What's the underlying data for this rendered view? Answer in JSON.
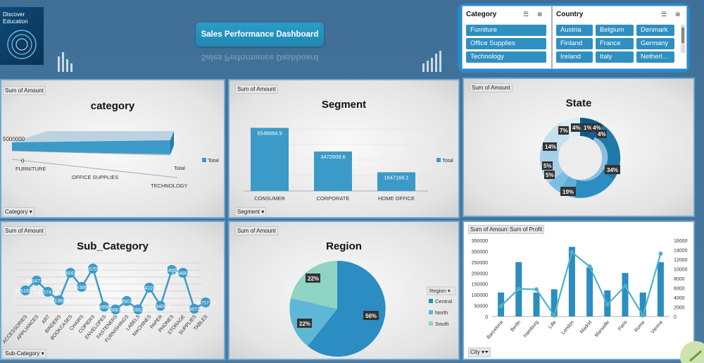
{
  "logo": {
    "line1": "Discover",
    "line2": "Education",
    "mark": "ⓔ"
  },
  "dashboard_title": "Sales Performance Dashboard",
  "slicers": {
    "category": {
      "header": "Category",
      "items": [
        "Furniture",
        "Office Supplies",
        "Technology"
      ]
    },
    "country": {
      "header": "Country",
      "items": [
        "Austria",
        "Belgium",
        "Denmark",
        "Finland",
        "France",
        "Germany",
        "Ireland",
        "Italy",
        "Netherl..."
      ]
    }
  },
  "sum_of_amount": "Sum of Amount",
  "sum_of_profit": "Sum of Profit",
  "category_chart": {
    "title": "category",
    "ytick": "5000000",
    "yzero": "0",
    "categories": [
      "FURNITURE",
      "OFFICE SUPPLIES",
      "TECHNOLOGY"
    ],
    "legend": "Total",
    "filter": "Category ▾"
  },
  "segment_chart": {
    "title": "Segment",
    "categories": [
      "CONSUMER",
      "CORPORATE",
      "HOME OFFICE"
    ],
    "values": [
      5548684.9,
      3472609.6,
      1647169.1
    ],
    "labels": [
      "5548684.9",
      "3472609.6",
      "1647169.1"
    ],
    "legend": "Total",
    "filter": "Segment ▾"
  },
  "state_chart": {
    "title": "State",
    "labels": [
      "4%",
      "1%",
      "4%",
      "4%",
      "34%",
      "19%",
      "5%",
      "5%",
      "14%",
      "7%"
    ]
  },
  "subcat_chart": {
    "title": "Sub_Category",
    "categories": [
      "ACCESSORIES",
      "APPLIANCES",
      "ART",
      "BINDERS",
      "BOOKCASES",
      "CHAIRS",
      "COPIERS",
      "ENVELOPES",
      "FASTENERS",
      "FURNISHINGS",
      "LABELS",
      "MACHINES",
      "PAPER",
      "PHONES",
      "STORAGE",
      "SUPPLIES",
      "TABLES"
    ],
    "labels": [
      "645168.9",
      "986471.8",
      "615747.4",
      "471368.8",
      "1360064",
      "943866",
      "1557093",
      "249980",
      "168873",
      "495012",
      "228527",
      "834228.5",
      "449408.6",
      "1244555.7",
      "1254801.7",
      "248717",
      "247573.5"
    ],
    "filter": "Sub-Category ▾"
  },
  "region_chart": {
    "title": "Region",
    "slices": [
      {
        "name": "Central",
        "pct": "56%",
        "color": "#2b8dc1"
      },
      {
        "name": "North",
        "pct": "22%",
        "color": "#5eb7d6"
      },
      {
        "name": "South",
        "pct": "22%",
        "color": "#8fd3c2"
      }
    ],
    "legend_header": "Region ▾"
  },
  "city_chart": {
    "cities": [
      "Barcelona",
      "Berlin",
      "Hamburg",
      "Lille",
      "London",
      "Madrid",
      "Marseille",
      "Paris",
      "Rome",
      "Vienna"
    ],
    "amount": [
      110000,
      250000,
      110000,
      125000,
      320000,
      225000,
      120000,
      200000,
      110000,
      250000
    ],
    "profit": [
      2200,
      5800,
      5700,
      200,
      13500,
      10500,
      2500,
      6400,
      200,
      13200
    ],
    "left_ticks": [
      "350000",
      "300000",
      "250000",
      "200000",
      "150000",
      "100000",
      "50000",
      "0"
    ],
    "right_ticks": [
      "16000",
      "14000",
      "12000",
      "10000",
      "8000",
      "6000",
      "4000",
      "2000",
      "0"
    ],
    "filter": "City"
  },
  "colors": {
    "accent": "#2b8dc1",
    "panel_border": "#6fa8d8",
    "slicer_bg": "#1f8fd0"
  }
}
